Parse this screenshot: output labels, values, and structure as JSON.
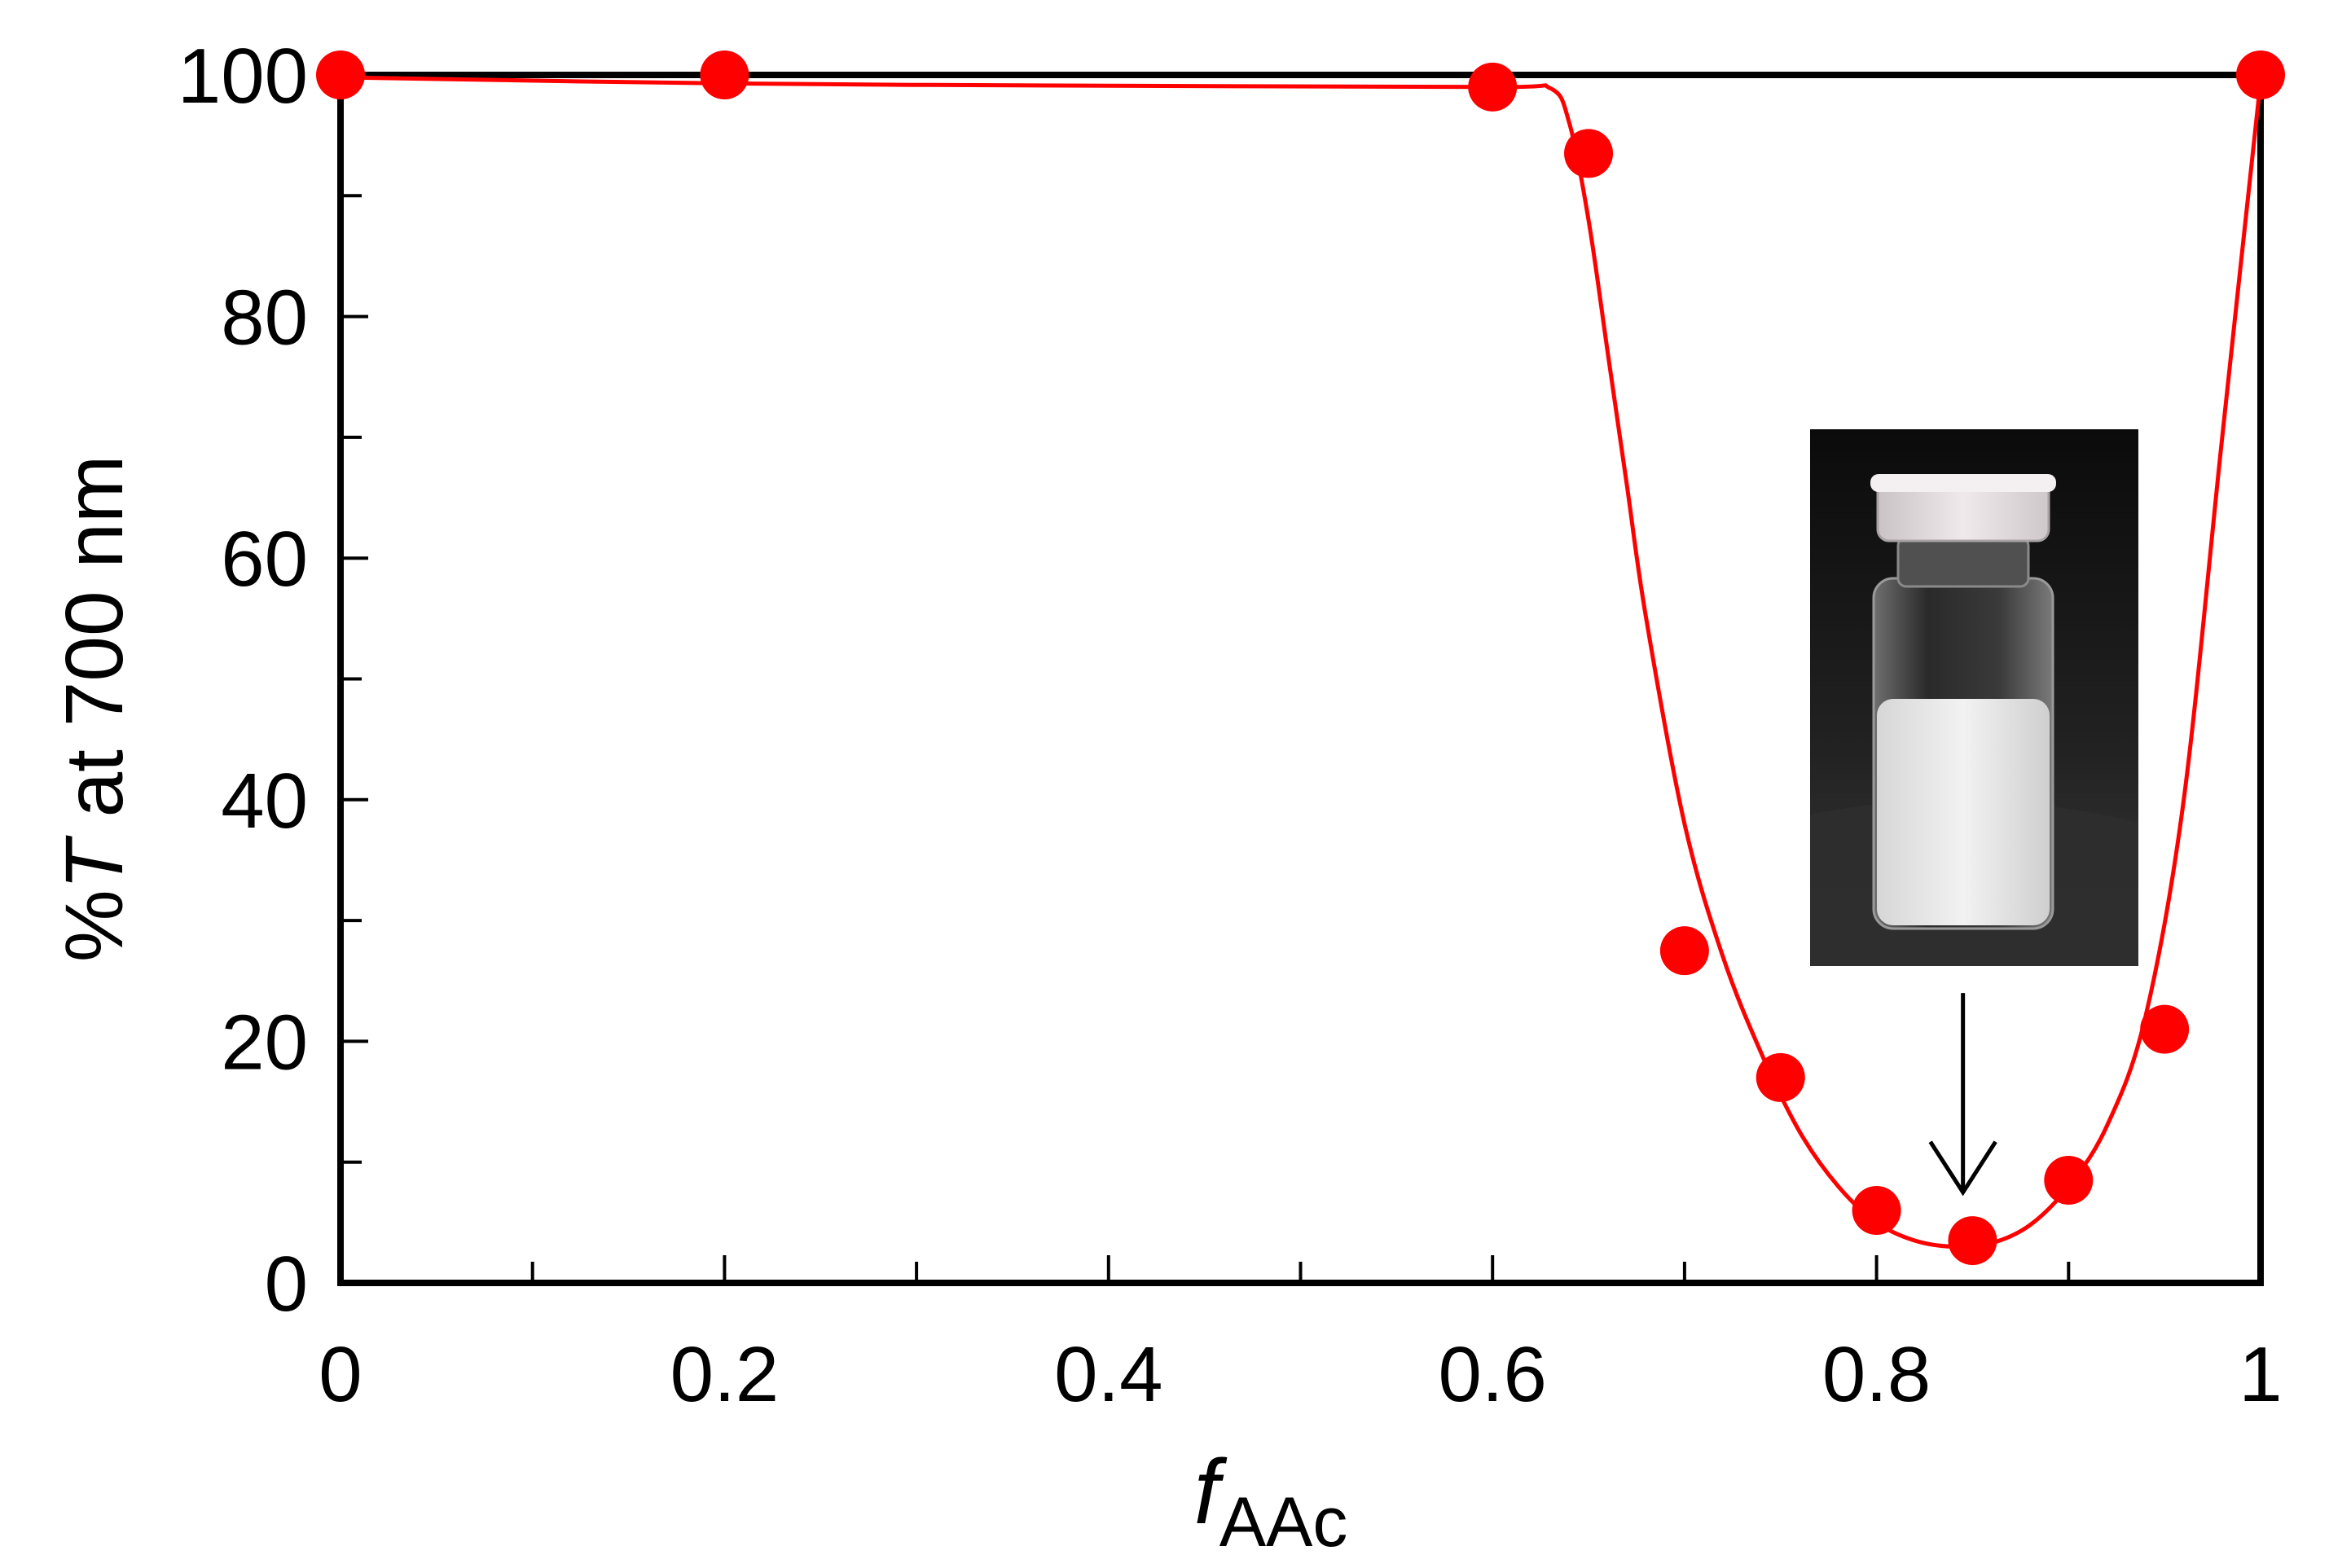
{
  "chart_data": {
    "type": "scatter",
    "title": "",
    "xlabel_main": "f",
    "xlabel_sub": "AAc",
    "ylabel_prefix": "%",
    "ylabel_italic": "T",
    "ylabel_suffix": " at 700 nm",
    "xlim": [
      0,
      1
    ],
    "ylim": [
      0,
      100
    ],
    "x_ticks": [
      {
        "value": 0,
        "label": "0"
      },
      {
        "value": 0.2,
        "label": "0.2"
      },
      {
        "value": 0.4,
        "label": "0.4"
      },
      {
        "value": 0.6,
        "label": "0.6"
      },
      {
        "value": 0.8,
        "label": "0.8"
      },
      {
        "value": 1,
        "label": "1"
      }
    ],
    "y_ticks": [
      {
        "value": 0,
        "label": "0"
      },
      {
        "value": 20,
        "label": "20"
      },
      {
        "value": 40,
        "label": "40"
      },
      {
        "value": 60,
        "label": "60"
      },
      {
        "value": 80,
        "label": "80"
      },
      {
        "value": 100,
        "label": "100"
      }
    ],
    "x_minor_ticks": [
      0.1,
      0.3,
      0.5,
      0.7,
      0.9
    ],
    "y_minor_ticks": [
      10,
      30,
      50,
      70,
      90
    ],
    "grid": false,
    "series": [
      {
        "kind": "points",
        "color": "#ff0000",
        "x": [
          0,
          0.2,
          0.6,
          0.65,
          0.7,
          0.75,
          0.8,
          0.85,
          0.9,
          0.95,
          1
        ],
        "y": [
          100,
          100,
          99,
          93.5,
          27.5,
          17,
          6,
          3.5,
          8.5,
          21,
          100
        ]
      },
      {
        "kind": "fit-line",
        "color": "#ff0000",
        "x": [
          0,
          0.2,
          0.4,
          0.6,
          0.63,
          0.64,
          0.65,
          0.66,
          0.67,
          0.68,
          0.7,
          0.72,
          0.74,
          0.76,
          0.78,
          0.8,
          0.82,
          0.84,
          0.86,
          0.88,
          0.9,
          0.92,
          0.94,
          0.96,
          0.98,
          1
        ],
        "y": [
          99.8,
          99.3,
          99.1,
          99.0,
          98.9,
          96,
          88,
          77,
          66,
          55,
          38,
          27,
          19,
          12.5,
          8,
          5,
          3.5,
          3,
          3.3,
          4.8,
          8,
          13,
          22,
          40,
          70,
          99.5
        ]
      }
    ],
    "annotations": [
      {
        "kind": "arrow",
        "x": 0.845,
        "y_from": 24,
        "y_to": 7.5,
        "color": "#000000"
      },
      {
        "kind": "inset-photo",
        "subject": "vial"
      }
    ]
  }
}
